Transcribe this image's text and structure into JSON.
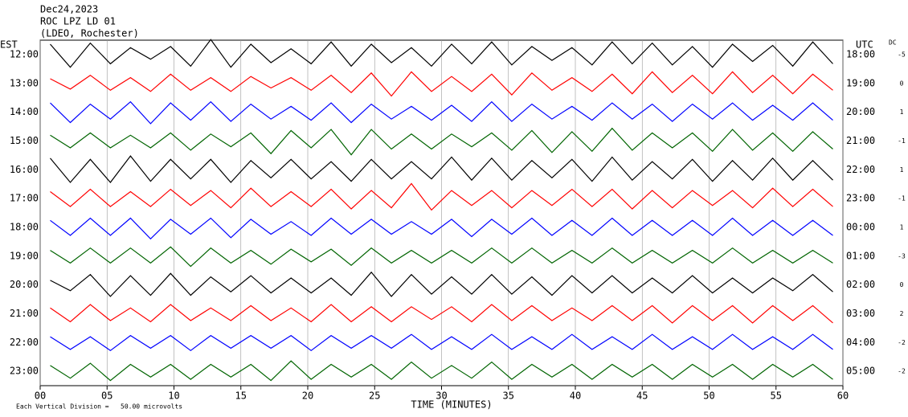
{
  "chart_data": {
    "type": "helicorder",
    "title_lines": [
      "Dec24,2023",
      "ROC LPZ LD 01",
      "(LDEO, Rochester)"
    ],
    "left_axis_label": "EST",
    "right_axis_label": "UTC",
    "dc_label": "DC",
    "xlabel": "TIME (MINUTES)",
    "footnote": "Each Vertical Division =   50.00 microvolts",
    "division_microvolts": 50,
    "xlim": [
      0,
      60
    ],
    "xticks": [
      {
        "value": 0,
        "label": "00"
      },
      {
        "value": 5,
        "label": "05"
      },
      10,
      15,
      20,
      25,
      30,
      35,
      40,
      45,
      50,
      55,
      60
    ],
    "grid": true,
    "series": [
      {
        "name": "12:00",
        "utc": "18:00",
        "dc": -5,
        "color": "#000000",
        "values": [
          18,
          22,
          20,
          16,
          12,
          8,
          14,
          20,
          26,
          22,
          18,
          14,
          10,
          16,
          22,
          20,
          18,
          14,
          12,
          20,
          18,
          16,
          22,
          18,
          14,
          10,
          12,
          18,
          22,
          16,
          20,
          18,
          14,
          22,
          18,
          12,
          16,
          20,
          22,
          16
        ]
      },
      {
        "name": "13:00",
        "utc": "19:00",
        "dc": 0,
        "color": "#ff0000",
        "values": [
          8,
          10,
          14,
          12,
          10,
          14,
          16,
          12,
          10,
          14,
          12,
          8,
          10,
          12,
          14,
          16,
          18,
          22,
          20,
          14,
          12,
          14,
          16,
          20,
          18,
          12,
          10,
          14,
          16,
          18,
          20,
          16,
          14,
          18,
          20,
          16,
          14,
          18,
          16,
          12
        ]
      },
      {
        "name": "14:00",
        "utc": "20:00",
        "dc": 1,
        "color": "#0000ff",
        "values": [
          16,
          18,
          14,
          12,
          18,
          20,
          16,
          14,
          18,
          16,
          14,
          12,
          10,
          14,
          16,
          18,
          14,
          12,
          10,
          14,
          12,
          16,
          18,
          16,
          14,
          12,
          10,
          14,
          16,
          12,
          14,
          16,
          14,
          12,
          16,
          14,
          12,
          14,
          16,
          14
        ]
      },
      {
        "name": "15:00",
        "utc": "21:00",
        "dc": -1,
        "color": "#006400",
        "values": [
          10,
          12,
          14,
          12,
          10,
          12,
          14,
          16,
          12,
          10,
          14,
          22,
          18,
          12,
          20,
          24,
          20,
          14,
          12,
          14,
          12,
          10,
          14,
          16,
          18,
          20,
          16,
          18,
          22,
          16,
          14,
          12,
          14,
          18,
          20,
          16,
          14,
          18,
          16,
          14
        ]
      },
      {
        "name": "16:00",
        "utc": "22:00",
        "dc": 1,
        "color": "#000000",
        "values": [
          20,
          22,
          18,
          22,
          24,
          20,
          18,
          16,
          18,
          22,
          16,
          14,
          18,
          16,
          14,
          20,
          18,
          16,
          14,
          16,
          22,
          18,
          20,
          18,
          16,
          14,
          18,
          20,
          22,
          18,
          14,
          16,
          18,
          20,
          16,
          18,
          20,
          18,
          16,
          18
        ]
      },
      {
        "name": "17:00",
        "utc": "23:00",
        "dc": -1,
        "color": "#ff0000",
        "values": [
          12,
          14,
          16,
          14,
          12,
          14,
          16,
          12,
          14,
          16,
          18,
          14,
          12,
          14,
          16,
          18,
          14,
          16,
          26,
          20,
          14,
          12,
          14,
          16,
          14,
          12,
          16,
          14,
          16,
          18,
          14,
          16,
          14,
          12,
          14,
          16,
          18,
          14,
          16,
          14
        ]
      },
      {
        "name": "18:00",
        "utc": "00:00",
        "dc": 1,
        "color": "#0000ff",
        "values": [
          12,
          14,
          16,
          14,
          16,
          20,
          14,
          12,
          16,
          18,
          14,
          12,
          10,
          14,
          16,
          12,
          14,
          12,
          10,
          12,
          14,
          16,
          14,
          12,
          16,
          14,
          12,
          14,
          16,
          14,
          12,
          14,
          12,
          14,
          16,
          14,
          12,
          14,
          12,
          14
        ]
      },
      {
        "name": "19:00",
        "utc": "01:00",
        "dc": -3,
        "color": "#006400",
        "values": [
          10,
          12,
          14,
          12,
          14,
          12,
          16,
          18,
          14,
          12,
          10,
          14,
          12,
          10,
          12,
          16,
          14,
          12,
          10,
          12,
          10,
          12,
          14,
          12,
          14,
          12,
          10,
          12,
          14,
          12,
          10,
          12,
          10,
          12,
          14,
          12,
          10,
          12,
          10,
          12
        ]
      },
      {
        "name": "20:00",
        "utc": "02:00",
        "dc": 0,
        "color": "#000000",
        "values": [
          8,
          10,
          18,
          20,
          16,
          18,
          20,
          18,
          14,
          12,
          16,
          14,
          12,
          14,
          12,
          18,
          22,
          20,
          18,
          16,
          14,
          16,
          18,
          16,
          14,
          18,
          16,
          14,
          16,
          14,
          12,
          14,
          16,
          14,
          12,
          14,
          12,
          10,
          18,
          12
        ]
      },
      {
        "name": "21:00",
        "utc": "03:00",
        "dc": 2,
        "color": "#ff0000",
        "values": [
          10,
          14,
          16,
          12,
          10,
          14,
          16,
          12,
          10,
          12,
          14,
          12,
          10,
          14,
          16,
          14,
          12,
          14,
          12,
          10,
          12,
          14,
          16,
          12,
          14,
          12,
          10,
          12,
          14,
          12,
          14,
          16,
          14,
          12,
          14,
          16,
          14,
          12,
          14,
          16
        ]
      },
      {
        "name": "22:00",
        "utc": "04:00",
        "dc": -2,
        "color": "#0000ff",
        "values": [
          10,
          12,
          10,
          14,
          12,
          10,
          12,
          14,
          12,
          10,
          12,
          10,
          12,
          14,
          12,
          10,
          12,
          10,
          14,
          12,
          10,
          12,
          14,
          12,
          10,
          12,
          14,
          12,
          10,
          12,
          14,
          12,
          10,
          12,
          14,
          12,
          10,
          12,
          14,
          12
        ]
      },
      {
        "name": "23:00",
        "utc": "05:00",
        "dc": -2,
        "color": "#006400",
        "values": [
          10,
          12,
          14,
          16,
          12,
          10,
          12,
          14,
          12,
          10,
          12,
          16,
          18,
          14,
          12,
          10,
          12,
          14,
          16,
          12,
          10,
          12,
          16,
          14,
          12,
          10,
          12,
          14,
          12,
          10,
          12,
          14,
          12,
          10,
          12,
          14,
          12,
          10,
          12,
          14
        ]
      }
    ]
  }
}
